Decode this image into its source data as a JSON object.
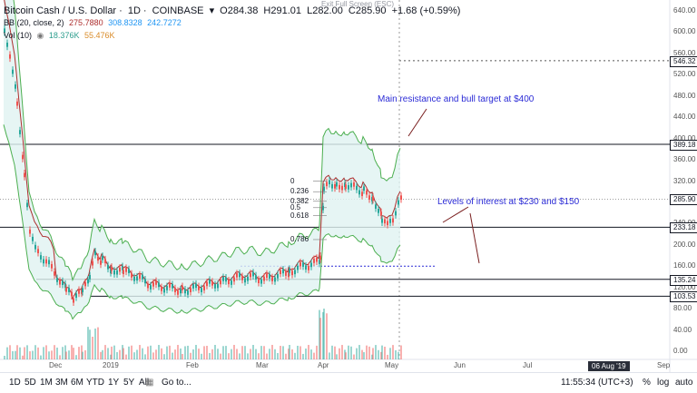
{
  "legend": {
    "symbol": "Bitcoin Cash / U.S. Dollar",
    "interval": "1D",
    "exchange": "COINBASE",
    "open": "O284.38",
    "high": "H291.01",
    "low": "L282.00",
    "close": "C285.90",
    "change": "+1.68 (+0.59%)",
    "bb_label": "BB (20, close, 2)",
    "bb_mid": "275.7880",
    "bb_up": "308.8328",
    "bb_low": "242.7272",
    "vol_label": "Vol (10)",
    "vol_1": "18.376K",
    "vol_2": "55.476K"
  },
  "exit_fullscreen": "Exit Full Screen (ESC)",
  "annotations": {
    "resistance": "Main resistance and bull target at $400",
    "interest": "Levels of interest at $230 and $150"
  },
  "fib_levels": [
    "0",
    "0.236",
    "0.382",
    "0.5",
    "0.618",
    "0.786"
  ],
  "price_axis": [
    "640.00",
    "600.00",
    "560.00",
    "520.00",
    "480.00",
    "440.00",
    "400.00",
    "360.00",
    "320.00",
    "280.00",
    "240.00",
    "200.00",
    "160.00",
    "120.00",
    "80.00",
    "40.00",
    "0.00"
  ],
  "price_tags": [
    {
      "text": "546.32",
      "bg": "#ffffff",
      "fg": "#131722"
    },
    {
      "text": "389.18",
      "bg": "#ffffff",
      "fg": "#131722"
    },
    {
      "text": "285.90",
      "bg": "#ffffff",
      "fg": "#131722"
    },
    {
      "text": "233.18",
      "bg": "#ffffff",
      "fg": "#131722"
    },
    {
      "text": "135.24",
      "bg": "#ffffff",
      "fg": "#131722"
    },
    {
      "text": "103.53",
      "bg": "#ffffff",
      "fg": "#131722"
    }
  ],
  "time_axis": [
    "Dec",
    "2019",
    "Feb",
    "Mar",
    "Apr",
    "May",
    "Jun",
    "Jul",
    "Sep"
  ],
  "date_tag": "06 Aug '19",
  "toolbar": {
    "ranges": [
      "1D",
      "5D",
      "1M",
      "3M",
      "6M",
      "YTD",
      "1Y",
      "5Y",
      "All"
    ],
    "goto": "Go to...",
    "clock": "11:55:34 (UTC+3)",
    "pct": "%",
    "log": "log",
    "auto": "auto"
  },
  "colors": {
    "up": "#26a69a",
    "down": "#ef5350",
    "bb_fill": "#e0f2f1",
    "bb_line": "#4caf50",
    "ma": "#ad2e2e",
    "annotation": "#2b2bd6"
  }
}
